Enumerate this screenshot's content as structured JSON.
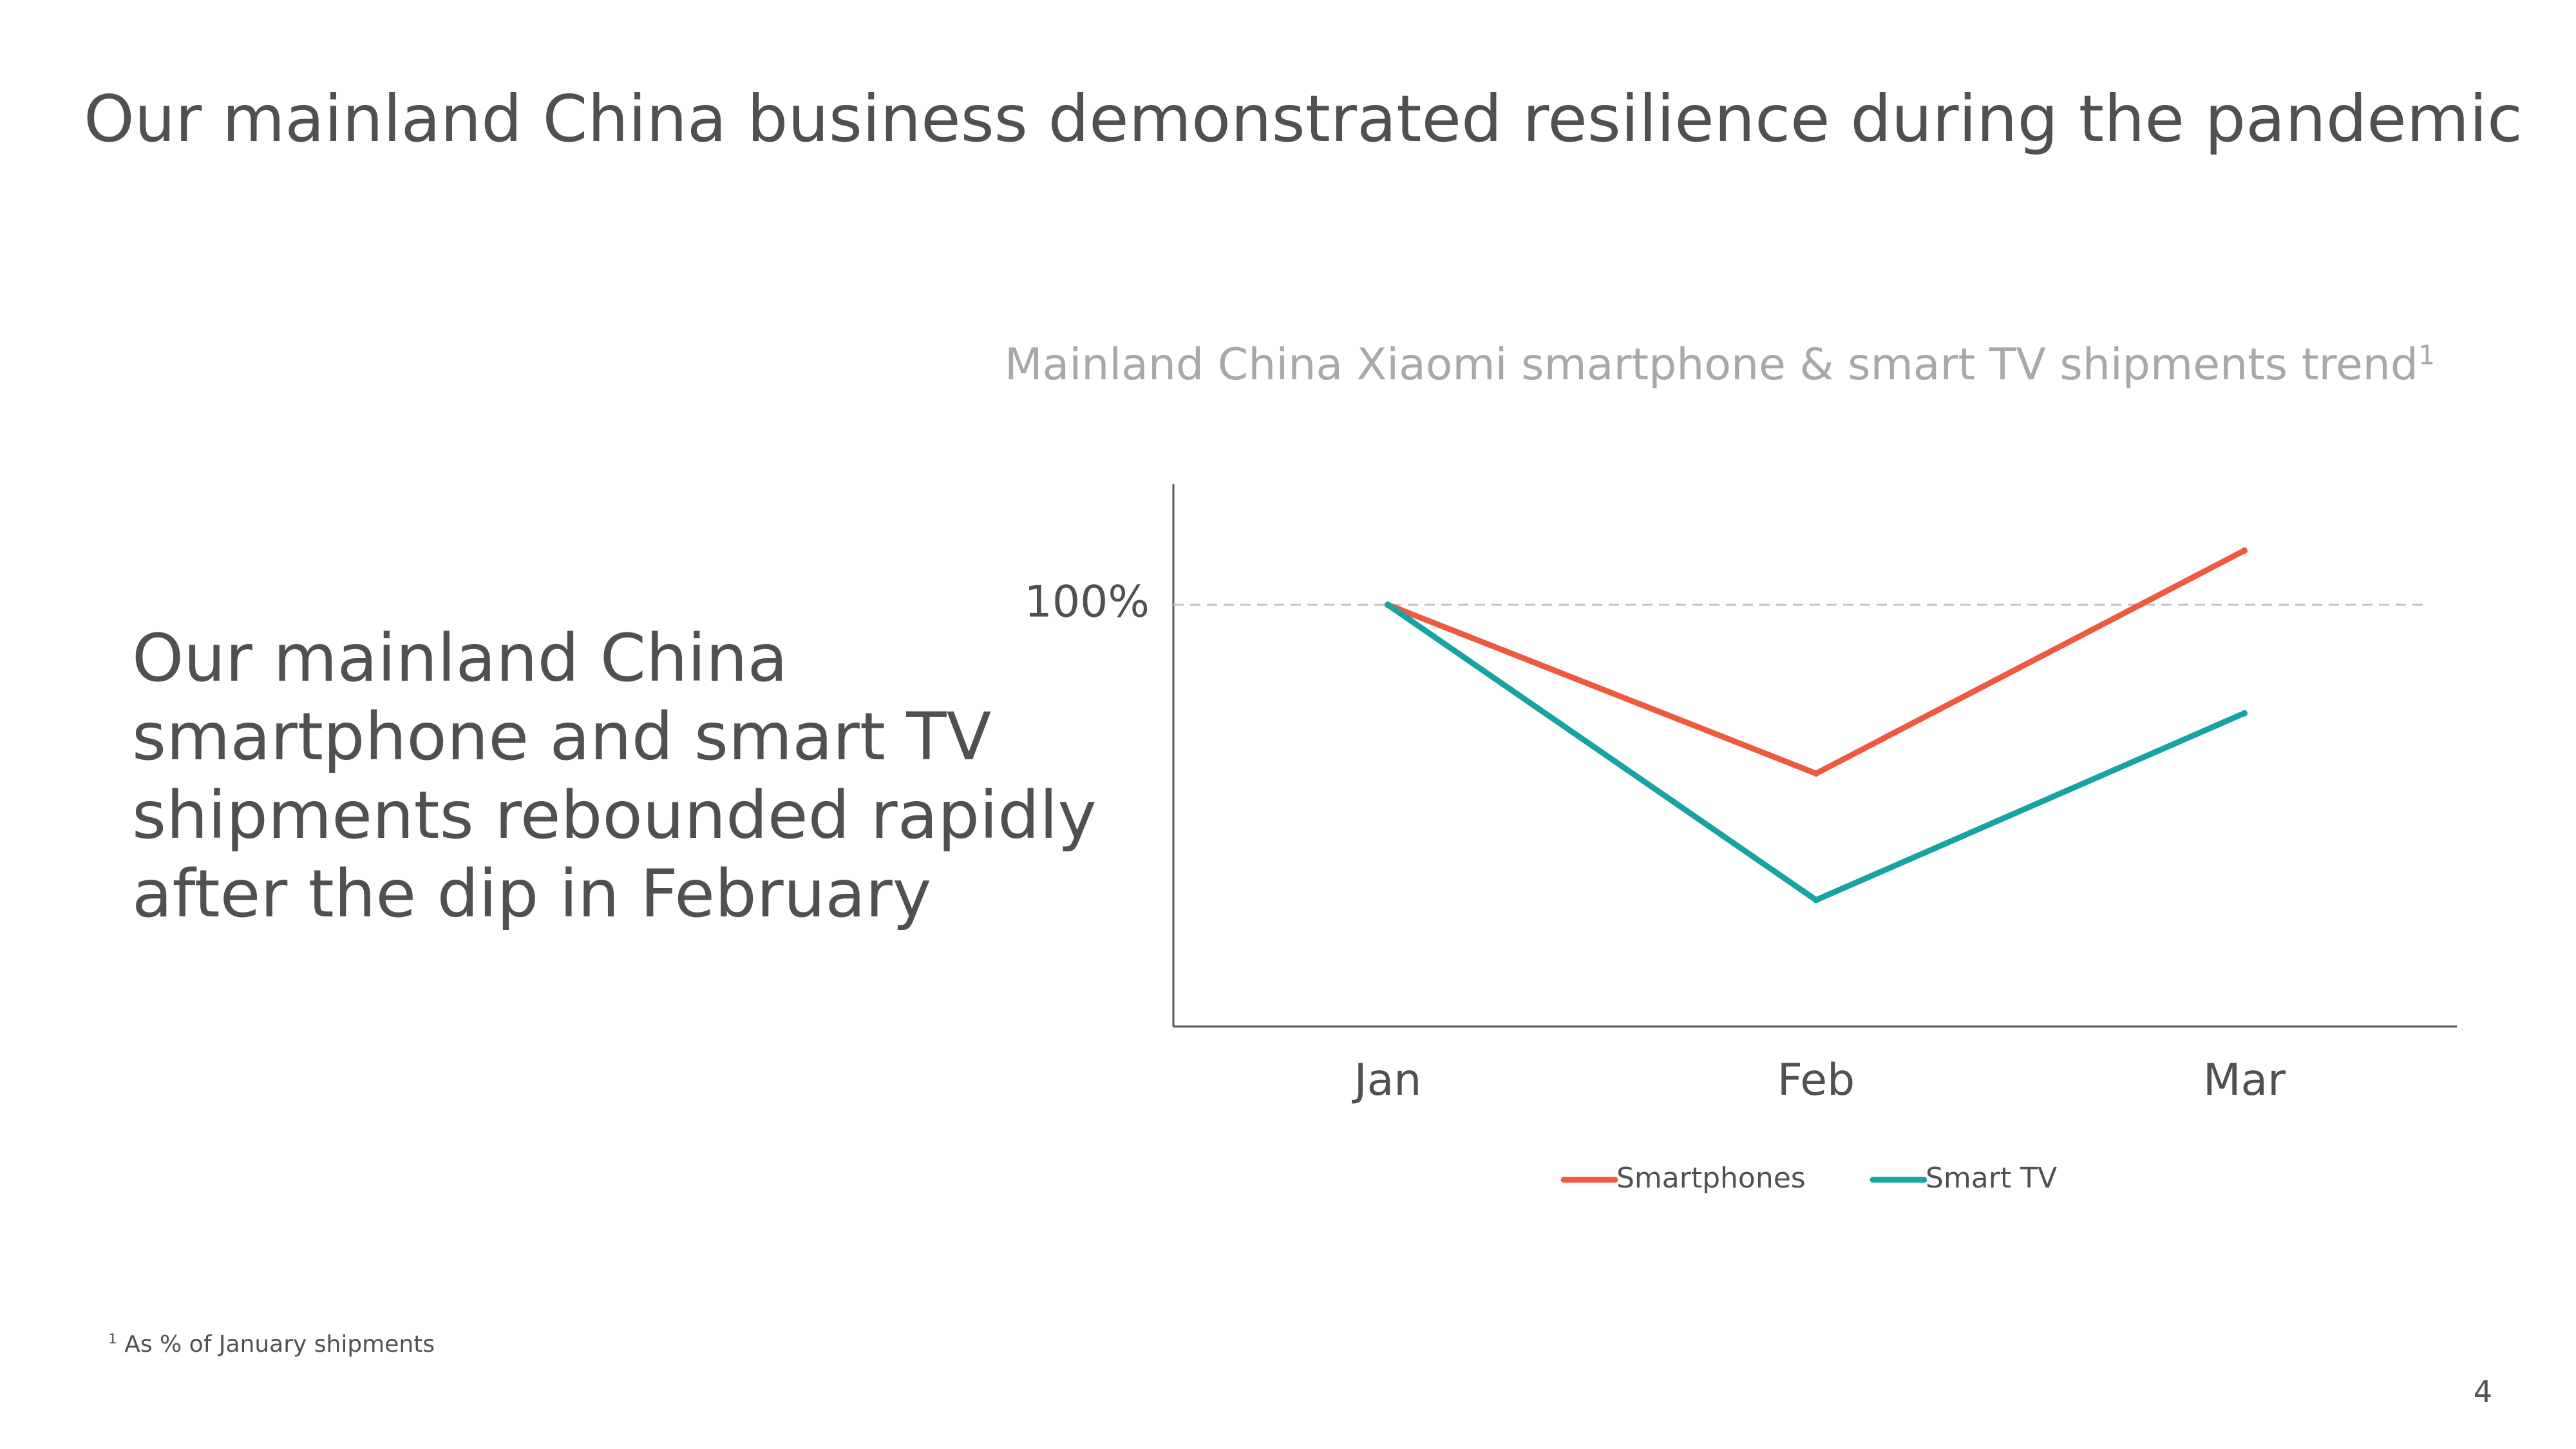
{
  "slide": {
    "title": "Our mainland China business demonstrated resilience during the pandemic",
    "body_text": "Our mainland China smartphone and smart TV shipments rebounded rapidly after the dip in February",
    "footnote_marker": "1",
    "footnote_text": "As % of January shipments",
    "page_number": "4"
  },
  "colors": {
    "smartphones": "#ee5a3f",
    "smart_tv": "#17a2a4",
    "axis": "#555555",
    "reference_line": "#c4c4c4"
  },
  "chart_data": {
    "type": "line",
    "title": "Mainland China Xiaomi smartphone & smart TV shipments trend",
    "title_footnote_marker": "1",
    "categories": [
      "Jan",
      "Feb",
      "Mar"
    ],
    "y_tick_label": "100%",
    "reference_value": 100,
    "ylim": [
      30,
      120
    ],
    "series": [
      {
        "name": "Smartphones",
        "values": [
          100,
          72,
          109
        ]
      },
      {
        "name": "Smart TV",
        "values": [
          100,
          51,
          82
        ]
      }
    ],
    "legend_position": "bottom-center",
    "grid": false
  }
}
